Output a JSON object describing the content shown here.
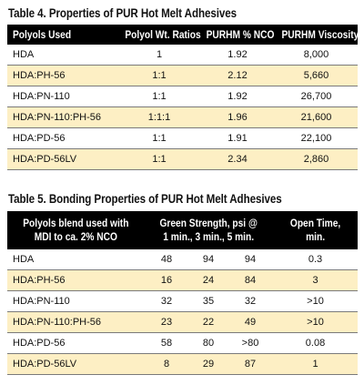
{
  "table4": {
    "title": "Table 4. Properties of PUR Hot Melt Adhesives",
    "headers": [
      "Polyols Used",
      "Polyol Wt. Ratios",
      "PURHM % NCO",
      "PURHM Viscosity"
    ],
    "rows": [
      [
        "HDA",
        "1",
        "1.92",
        "8,000"
      ],
      [
        "HDA:PH-56",
        "1:1",
        "2.12",
        "5,660"
      ],
      [
        "HDA:PN-110",
        "1:1",
        "1.92",
        "26,700"
      ],
      [
        "HDA:PN-110:PH-56",
        "1:1:1",
        "1.96",
        "21,600"
      ],
      [
        "HDA:PD-56",
        "1:1",
        "1.91",
        "22,100"
      ],
      [
        "HDA:PD-56LV",
        "1:1",
        "2.34",
        "2,860"
      ]
    ]
  },
  "table5": {
    "title": "Table 5. Bonding Properties of PUR Hot Melt Adhesives",
    "headers": {
      "polyols_line1": "Polyols blend used with",
      "polyols_line2": "MDI to ca. 2% NCO",
      "green_line1": "Green Strength, psi @",
      "green_line2": "1 min., 3 min., 5 min.",
      "open_line1": "Open Time,",
      "open_line2": "min."
    },
    "rows": [
      [
        "HDA",
        "48",
        "94",
        "94",
        "0.3"
      ],
      [
        "HDA:PH-56",
        "16",
        "24",
        "84",
        "3"
      ],
      [
        "HDA:PN-110",
        "32",
        "35",
        "32",
        ">10"
      ],
      [
        "HDA:PN-110:PH-56",
        "23",
        "22",
        "49",
        ">10"
      ],
      [
        "HDA:PD-56",
        "58",
        "80",
        ">80",
        "0.08"
      ],
      [
        "HDA:PD-56LV",
        "8",
        "29",
        "87",
        "1"
      ]
    ]
  }
}
